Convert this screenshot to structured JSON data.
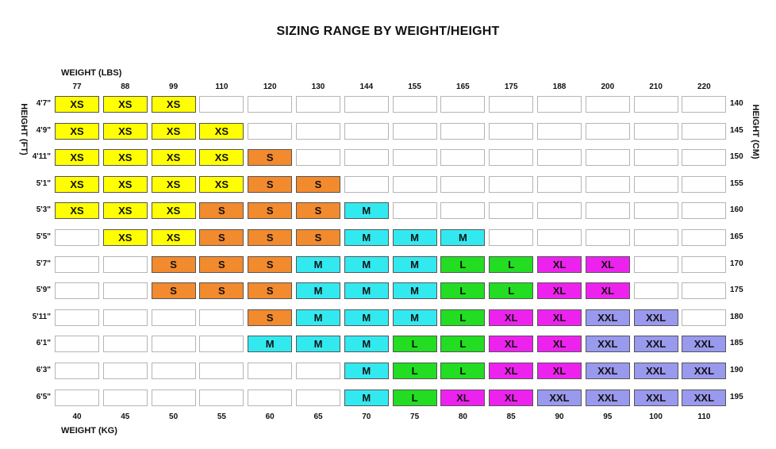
{
  "title": "SIZING RANGE BY WEIGHT/HEIGHT",
  "colors": {
    "XS": "#ffff00",
    "S": "#f28a2e",
    "M": "#33e9f0",
    "L": "#22dd22",
    "XL": "#ee22ee",
    "XXL": "#9999ee"
  },
  "chart_data": {
    "type": "table",
    "title": "SIZING RANGE BY WEIGHT/HEIGHT",
    "top_axis_label": "WEIGHT (LBS)",
    "bottom_axis_label": "WEIGHT (KG)",
    "left_axis_label": "HEIGHT (FT)",
    "right_axis_label": "HEIGHT (CM)",
    "weights_lbs": [
      "77",
      "88",
      "99",
      "110",
      "120",
      "130",
      "144",
      "155",
      "165",
      "175",
      "188",
      "200",
      "210",
      "220"
    ],
    "weights_kg": [
      "40",
      "45",
      "50",
      "55",
      "60",
      "65",
      "70",
      "75",
      "80",
      "85",
      "90",
      "95",
      "100",
      "110"
    ],
    "heights_ft": [
      "4'7\"",
      "4'9\"",
      "4'11\"",
      "5'1\"",
      "5'3\"",
      "5'5\"",
      "5'7\"",
      "5'9\"",
      "5'11\"",
      "6'1\"",
      "6'3\"",
      "6'5\""
    ],
    "heights_cm": [
      "140",
      "145",
      "150",
      "155",
      "160",
      "165",
      "170",
      "175",
      "180",
      "185",
      "190",
      "195"
    ],
    "sizes": [
      [
        "XS",
        "XS",
        "XS",
        "",
        "",
        "",
        "",
        "",
        "",
        "",
        "",
        "",
        "",
        ""
      ],
      [
        "XS",
        "XS",
        "XS",
        "XS",
        "",
        "",
        "",
        "",
        "",
        "",
        "",
        "",
        "",
        ""
      ],
      [
        "XS",
        "XS",
        "XS",
        "XS",
        "S",
        "",
        "",
        "",
        "",
        "",
        "",
        "",
        "",
        ""
      ],
      [
        "XS",
        "XS",
        "XS",
        "XS",
        "S",
        "S",
        "",
        "",
        "",
        "",
        "",
        "",
        "",
        ""
      ],
      [
        "XS",
        "XS",
        "XS",
        "S",
        "S",
        "S",
        "M",
        "",
        "",
        "",
        "",
        "",
        "",
        ""
      ],
      [
        "",
        "XS",
        "XS",
        "S",
        "S",
        "S",
        "M",
        "M",
        "M",
        "",
        "",
        "",
        "",
        ""
      ],
      [
        "",
        "",
        "S",
        "S",
        "S",
        "M",
        "M",
        "M",
        "L",
        "L",
        "XL",
        "XL",
        "",
        ""
      ],
      [
        "",
        "",
        "S",
        "S",
        "S",
        "M",
        "M",
        "M",
        "L",
        "L",
        "XL",
        "XL",
        "",
        ""
      ],
      [
        "",
        "",
        "",
        "",
        "S",
        "M",
        "M",
        "M",
        "L",
        "XL",
        "XL",
        "XXL",
        "XXL",
        ""
      ],
      [
        "",
        "",
        "",
        "",
        "M",
        "M",
        "M",
        "L",
        "L",
        "XL",
        "XL",
        "XXL",
        "XXL",
        "XXL"
      ],
      [
        "",
        "",
        "",
        "",
        "",
        "",
        "M",
        "L",
        "L",
        "XL",
        "XL",
        "XXL",
        "XXL",
        "XXL"
      ],
      [
        "",
        "",
        "",
        "",
        "",
        "",
        "M",
        "L",
        "XL",
        "XL",
        "XXL",
        "XXL",
        "XXL",
        "XXL"
      ]
    ]
  }
}
